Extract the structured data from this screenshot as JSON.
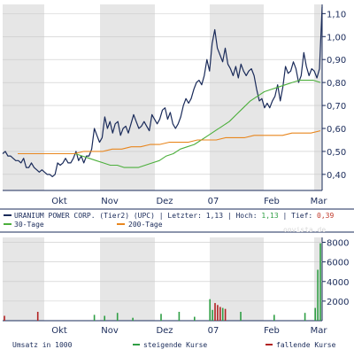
{
  "chart_data": [
    {
      "type": "line",
      "title": "",
      "x_labels": [
        "Okt",
        "Nov",
        "Dez",
        "07",
        "Feb",
        "Mar"
      ],
      "y_ticks": [
        "0,40",
        "0,50",
        "0,60",
        "0,70",
        "0,80",
        "0,90",
        "1,00",
        "1,10"
      ],
      "ylim": [
        0.33,
        1.14
      ],
      "series": [
        {
          "name": "URANIUM POWER CORP. (Tier2) (UPC)",
          "color": "#1a2b5a",
          "values": [
            0.49,
            0.5,
            0.48,
            0.48,
            0.47,
            0.46,
            0.46,
            0.45,
            0.47,
            0.43,
            0.43,
            0.45,
            0.43,
            0.42,
            0.41,
            0.42,
            0.41,
            0.4,
            0.4,
            0.39,
            0.4,
            0.45,
            0.44,
            0.45,
            0.47,
            0.45,
            0.45,
            0.47,
            0.5,
            0.46,
            0.48,
            0.45,
            0.48,
            0.48,
            0.51,
            0.6,
            0.57,
            0.54,
            0.56,
            0.65,
            0.6,
            0.63,
            0.58,
            0.62,
            0.63,
            0.57,
            0.6,
            0.61,
            0.58,
            0.62,
            0.66,
            0.63,
            0.6,
            0.61,
            0.63,
            0.61,
            0.59,
            0.66,
            0.64,
            0.62,
            0.64,
            0.68,
            0.69,
            0.64,
            0.67,
            0.62,
            0.6,
            0.62,
            0.65,
            0.7,
            0.73,
            0.71,
            0.73,
            0.77,
            0.8,
            0.81,
            0.79,
            0.83,
            0.9,
            0.85,
            0.97,
            1.03,
            0.95,
            0.92,
            0.89,
            0.95,
            0.88,
            0.86,
            0.83,
            0.87,
            0.82,
            0.88,
            0.85,
            0.83,
            0.85,
            0.86,
            0.83,
            0.77,
            0.72,
            0.73,
            0.69,
            0.71,
            0.69,
            0.72,
            0.74,
            0.79,
            0.72,
            0.78,
            0.87,
            0.84,
            0.85,
            0.89,
            0.86,
            0.8,
            0.83,
            0.93,
            0.87,
            0.83,
            0.86,
            0.85,
            0.82,
            0.86,
            1.13
          ]
        },
        {
          "name": "30-Tage",
          "color": "#4caf3c",
          "values": [
            0.49,
            0.48,
            0.47,
            0.46,
            0.45,
            0.44,
            0.44,
            0.43,
            0.43,
            0.43,
            0.44,
            0.45,
            0.46,
            0.48,
            0.49,
            0.51,
            0.52,
            0.53,
            0.55,
            0.57,
            0.59,
            0.61,
            0.63,
            0.66,
            0.69,
            0.72,
            0.74,
            0.76,
            0.77,
            0.78,
            0.79,
            0.8,
            0.81,
            0.81,
            0.81,
            0.8
          ]
        },
        {
          "name": "200-Tage",
          "color": "#e8861e",
          "values": [
            0.49,
            0.49,
            0.49,
            0.49,
            0.49,
            0.49,
            0.49,
            0.5,
            0.5,
            0.5,
            0.51,
            0.51,
            0.52,
            0.52,
            0.53,
            0.53,
            0.54,
            0.54,
            0.54,
            0.55,
            0.55,
            0.55,
            0.56,
            0.56,
            0.56,
            0.57,
            0.57,
            0.57,
            0.57,
            0.58,
            0.58,
            0.58,
            0.59
          ]
        }
      ],
      "legend_line1": {
        "name": "URANIUM POWER CORP. (Tier2) (UPC)",
        "last_label": "Letzter:",
        "last_value": "1,13",
        "high_label": "Hoch:",
        "high_value": "1,13",
        "low_label": "Tief:",
        "low_value": "0,39"
      },
      "legend_line2": {
        "ma30": "30-Tage",
        "ma200": "200-Tage"
      },
      "watermark": "onvista.de",
      "grid": true
    },
    {
      "type": "bar",
      "title": "",
      "ylabel": "Umsatz in 1000",
      "y_ticks": [
        "2000",
        "4000",
        "6000",
        "8000"
      ],
      "ylim": [
        0,
        8500
      ],
      "series": [
        {
          "name": "steigende Kurse",
          "color": "#2f9e44",
          "values": [
            0,
            0,
            0,
            0,
            0,
            0,
            0,
            0,
            0,
            0,
            0,
            0,
            0,
            0,
            0,
            0,
            0,
            0,
            0,
            0,
            0,
            0,
            0,
            0,
            0,
            0,
            0,
            0,
            0,
            0,
            0,
            0,
            0,
            0,
            0,
            600,
            0,
            0,
            0,
            500,
            0,
            0,
            0,
            0,
            800,
            0,
            0,
            0,
            0,
            0,
            300,
            0,
            0,
            0,
            0,
            0,
            0,
            0,
            0,
            0,
            0,
            700,
            0,
            0,
            0,
            0,
            0,
            0,
            900,
            0,
            0,
            0,
            0,
            0,
            400,
            0,
            0,
            0,
            0,
            0,
            2200,
            1100,
            0,
            0,
            0,
            1300,
            0,
            0,
            0,
            0,
            0,
            0,
            900,
            0,
            0,
            0,
            0,
            0,
            0,
            0,
            0,
            0,
            0,
            0,
            0,
            600,
            0,
            0,
            0,
            0,
            0,
            0,
            0,
            0,
            0,
            0,
            0,
            800,
            0,
            0,
            0,
            1300,
            5200,
            7900
          ]
        },
        {
          "name": "fallende Kurse",
          "color": "#b22222",
          "values": [
            500,
            0,
            0,
            0,
            0,
            0,
            0,
            0,
            0,
            0,
            0,
            0,
            0,
            900,
            0,
            0,
            0,
            0,
            0,
            0,
            0,
            0,
            0,
            0,
            0,
            0,
            0,
            0,
            0,
            0,
            0,
            0,
            0,
            0,
            0,
            0,
            0,
            0,
            0,
            0,
            0,
            0,
            0,
            0,
            0,
            0,
            0,
            0,
            0,
            0,
            0,
            0,
            0,
            0,
            0,
            0,
            0,
            0,
            0,
            0,
            0,
            0,
            0,
            0,
            0,
            0,
            0,
            0,
            0,
            0,
            0,
            0,
            0,
            0,
            0,
            0,
            0,
            0,
            0,
            0,
            0,
            0,
            1800,
            1600,
            1400,
            0,
            1200,
            0,
            0,
            0,
            0,
            0,
            0,
            0,
            0,
            0,
            0,
            0,
            0,
            0,
            0,
            0,
            0,
            0,
            0,
            0,
            0,
            0,
            0,
            0,
            0,
            0,
            0,
            0,
            0,
            0,
            0,
            0,
            0,
            0,
            0,
            0,
            0,
            0
          ]
        }
      ],
      "legend": [
        "Umsatz in 1000",
        "steigende Kurse",
        "fallende Kurse"
      ]
    }
  ]
}
